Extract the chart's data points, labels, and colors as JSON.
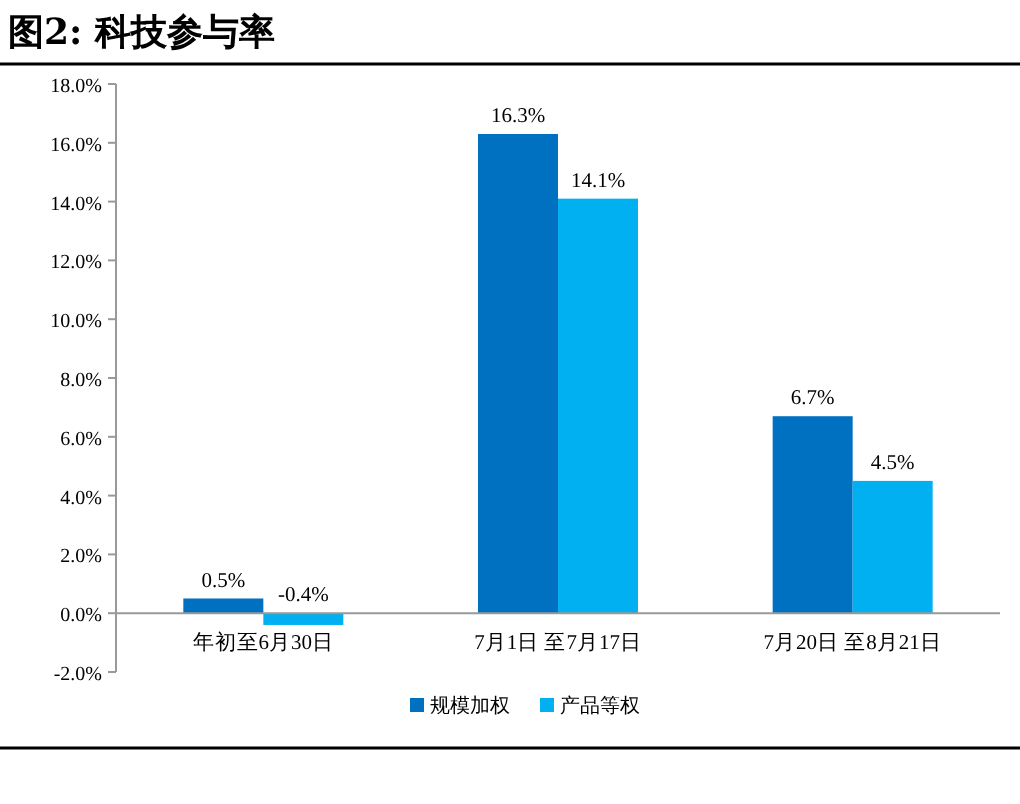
{
  "chart_data": {
    "type": "bar",
    "title": "图2:  科技参与率",
    "categories": [
      "年初至6月30日",
      "7月1日 至7月17日",
      "7月20日 至8月21日"
    ],
    "series": [
      {
        "name": "规模加权",
        "color": "#0070c0",
        "values": [
          0.5,
          16.3,
          6.7
        ],
        "value_labels": [
          "0.5%",
          "16.3%",
          "6.7%"
        ]
      },
      {
        "name": "产品等权",
        "color": "#00b0f0",
        "values": [
          -0.4,
          14.1,
          4.5
        ],
        "value_labels": [
          "-0.4%",
          "14.1%",
          "4.5%"
        ]
      }
    ],
    "ylim": [
      -2,
      18
    ],
    "yticks": [
      {
        "value": -2,
        "label": "-2.0%"
      },
      {
        "value": 0,
        "label": "0.0%"
      },
      {
        "value": 2,
        "label": "2.0%"
      },
      {
        "value": 4,
        "label": "4.0%"
      },
      {
        "value": 6,
        "label": "6.0%"
      },
      {
        "value": 8,
        "label": "8.0%"
      },
      {
        "value": 10,
        "label": "10.0%"
      },
      {
        "value": 12,
        "label": "12.0%"
      },
      {
        "value": 14,
        "label": "14.0%"
      },
      {
        "value": 16,
        "label": "16.0%"
      },
      {
        "value": 18,
        "label": "18.0%"
      }
    ],
    "grid": false,
    "legend": "bottom"
  }
}
